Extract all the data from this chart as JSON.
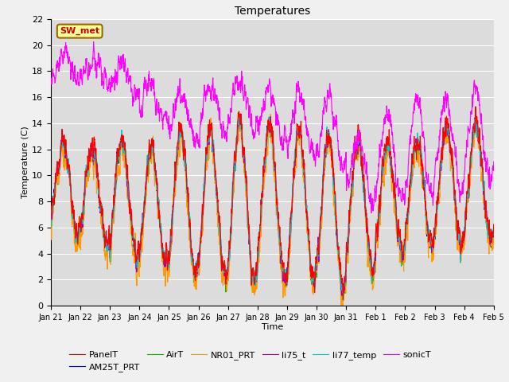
{
  "title": "Temperatures",
  "xlabel": "Time",
  "ylabel": "Temperature (C)",
  "ylim": [
    0,
    22
  ],
  "yticks": [
    0,
    2,
    4,
    6,
    8,
    10,
    12,
    14,
    16,
    18,
    20,
    22
  ],
  "xtick_labels": [
    "Jan 21",
    "Jan 22",
    "Jan 23",
    "Jan 24",
    "Jan 25",
    "Jan 26",
    "Jan 27",
    "Jan 28",
    "Jan 29",
    "Jan 30",
    "Jan 31",
    "Feb 1",
    "Feb 2",
    "Feb 3",
    "Feb 4",
    "Feb 5"
  ],
  "series": {
    "PanelT": {
      "color": "#FF0000",
      "lw": 0.8
    },
    "AM25T_PRT": {
      "color": "#0000CC",
      "lw": 0.8
    },
    "AirT": {
      "color": "#00BB00",
      "lw": 0.8
    },
    "NR01_PRT": {
      "color": "#FF9900",
      "lw": 0.8
    },
    "li75_t": {
      "color": "#9900CC",
      "lw": 0.8
    },
    "li77_temp": {
      "color": "#00CCCC",
      "lw": 0.8
    },
    "sonicT": {
      "color": "#FF00FF",
      "lw": 0.8
    }
  },
  "annotation_text": "SW_met",
  "annotation_color": "#CC0000",
  "annotation_bg": "#FFFF99",
  "annotation_border": "#996600",
  "plot_bg_color": "#DCDCDC",
  "fig_bg_color": "#F0F0F0",
  "grid_color": "#FFFFFF",
  "figsize": [
    6.4,
    4.8
  ],
  "dpi": 100
}
